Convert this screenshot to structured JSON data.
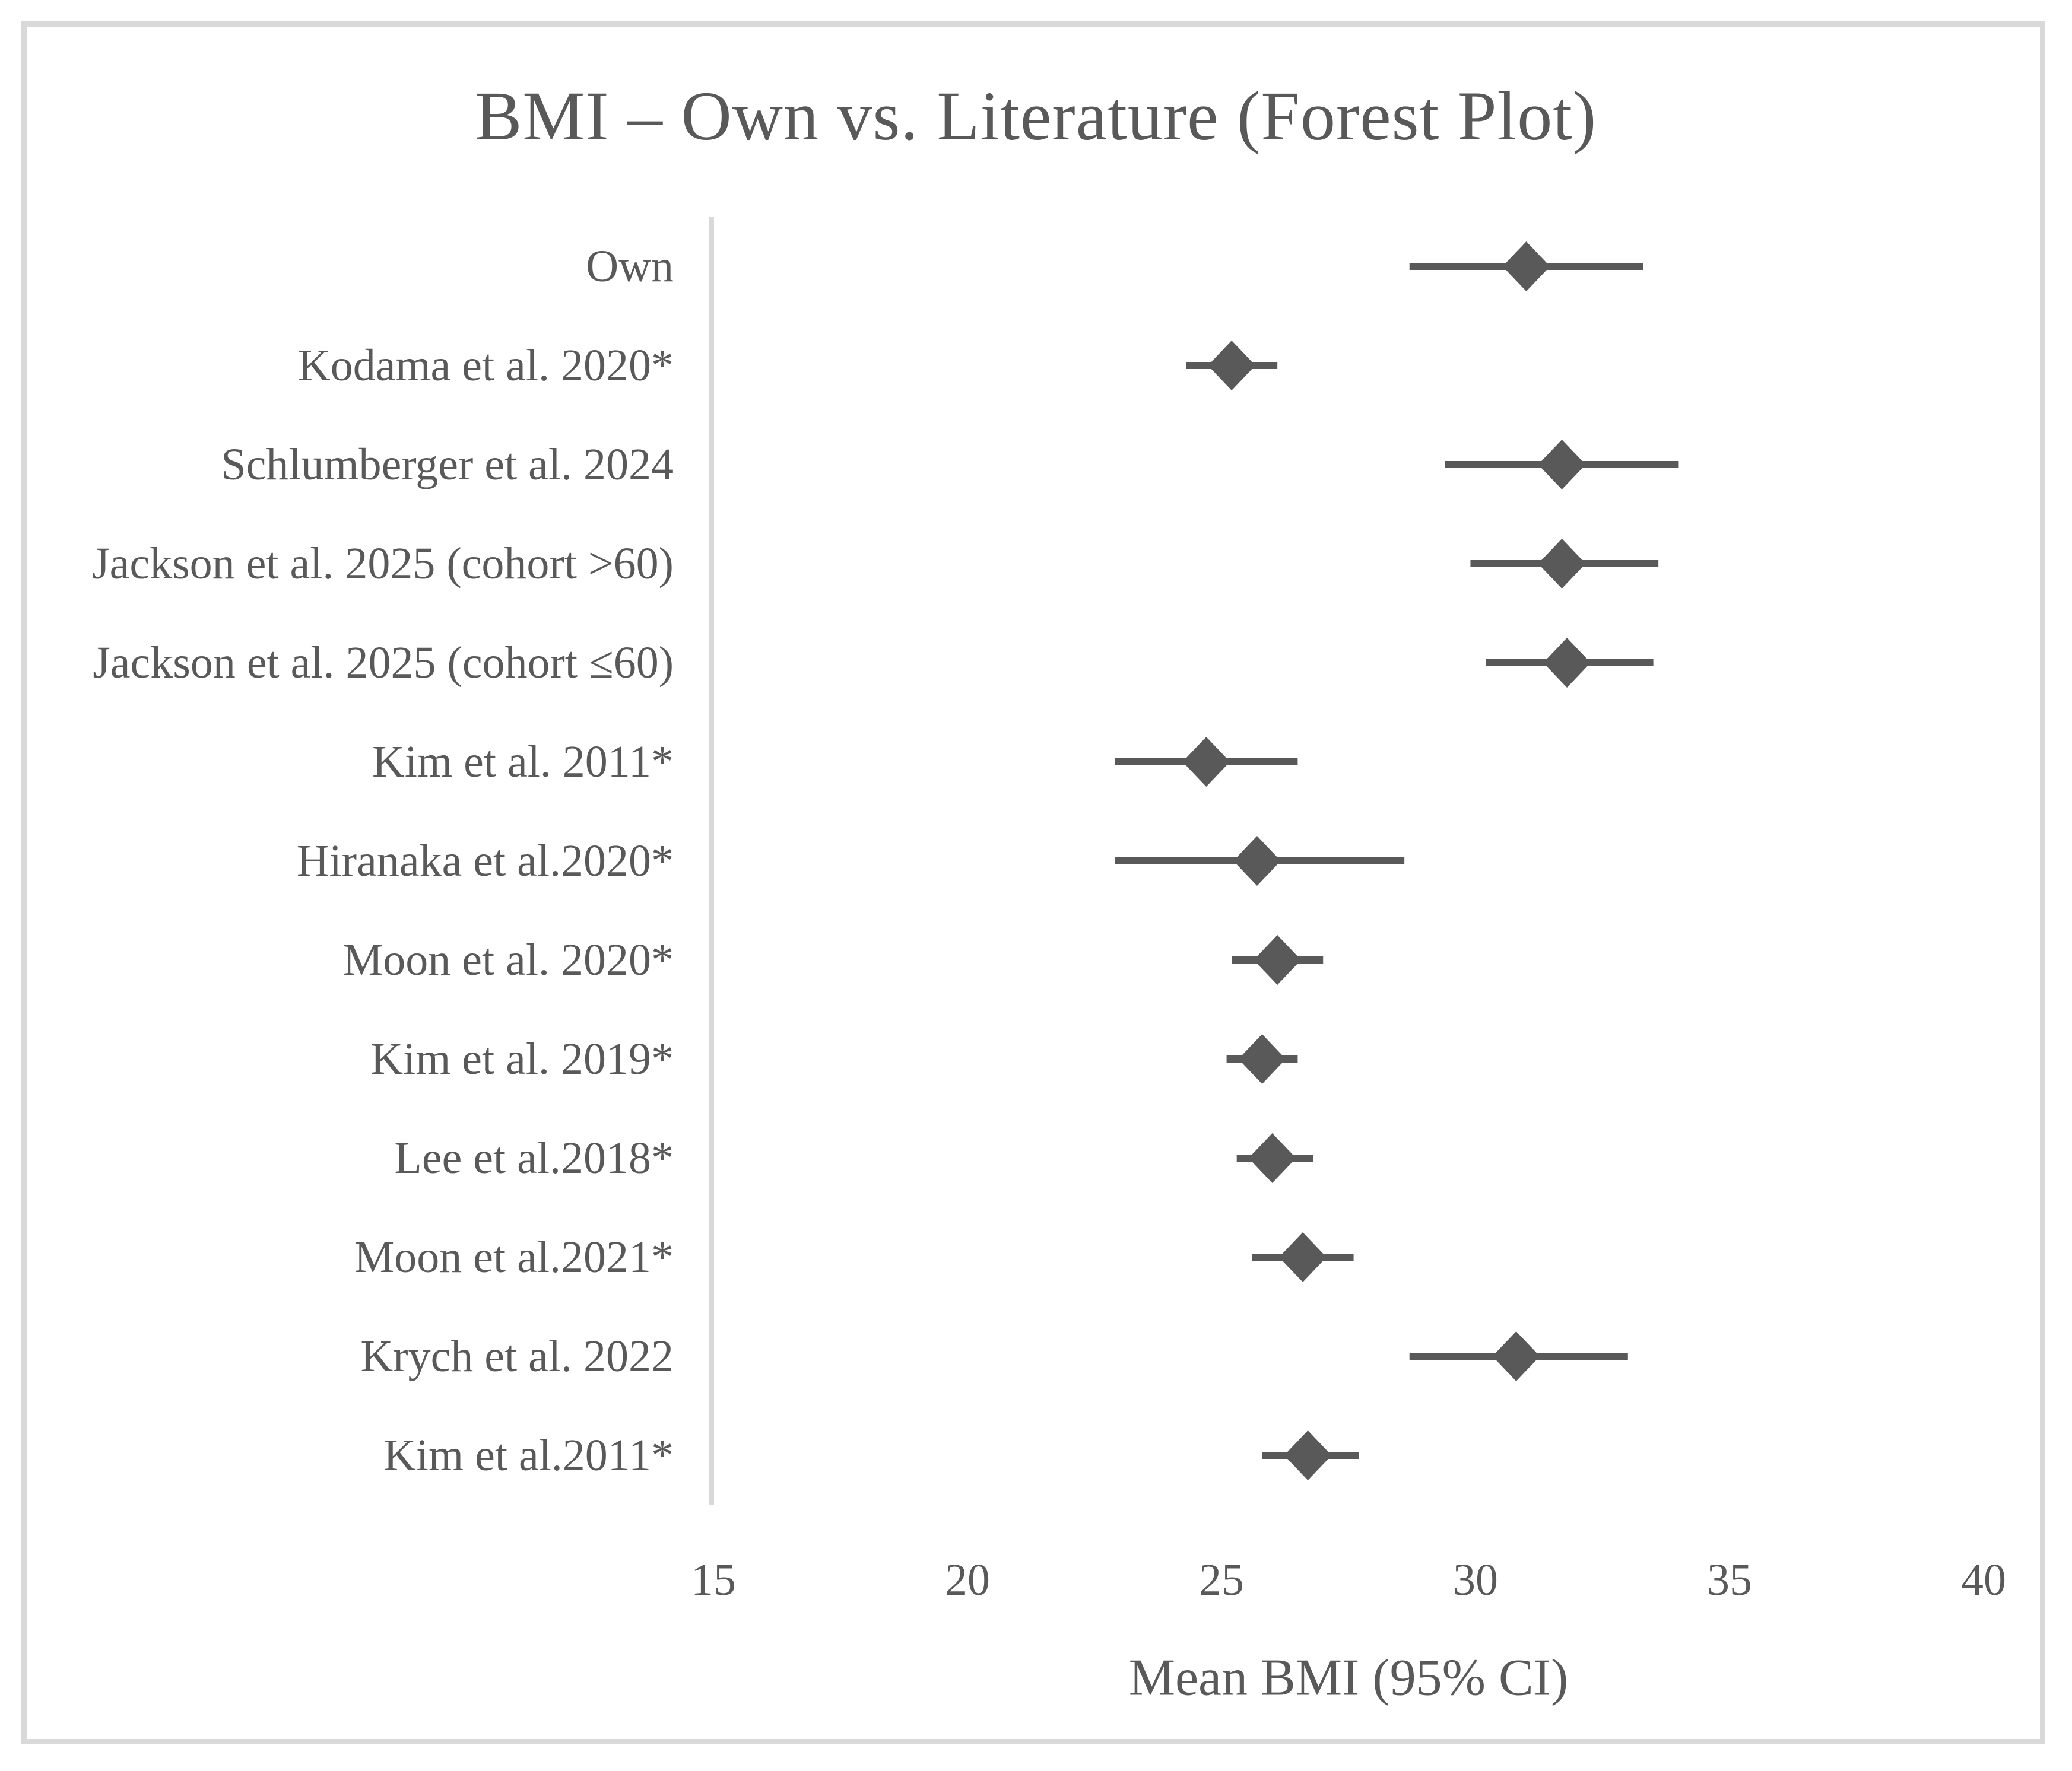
{
  "chart_data": {
    "type": "forest",
    "title": "BMI – Own vs. Literature (Forest Plot)",
    "xlabel": "Mean BMI (95% CI)",
    "xlim": [
      15,
      40
    ],
    "xticks": [
      15,
      20,
      25,
      30,
      35,
      40
    ],
    "grid": false,
    "legend": "none",
    "marker_shape": "diamond",
    "marker_color": "#595959",
    "ci_line_color": "#595959",
    "axis_line_color": "#d9d9d9",
    "text_color": "#595959",
    "frame_color": "#d9d9d9",
    "background_color": "#ffffff",
    "studies": [
      {
        "label": "Own",
        "mean": 31.0,
        "ci_low": 28.7,
        "ci_high": 33.3
      },
      {
        "label": "Kodama et al. 2020*",
        "mean": 25.2,
        "ci_low": 24.3,
        "ci_high": 26.1
      },
      {
        "label": "Schlumberger et al. 2024",
        "mean": 31.7,
        "ci_low": 29.4,
        "ci_high": 34.0
      },
      {
        "label": "Jackson et al. 2025 (cohort >60)",
        "mean": 31.7,
        "ci_low": 29.9,
        "ci_high": 33.6
      },
      {
        "label": "Jackson et al. 2025 (cohort ≤60)",
        "mean": 31.8,
        "ci_low": 30.2,
        "ci_high": 33.5
      },
      {
        "label": "Kim et al. 2011*",
        "mean": 24.7,
        "ci_low": 22.9,
        "ci_high": 26.5
      },
      {
        "label": "Hiranaka et al.2020*",
        "mean": 25.7,
        "ci_low": 22.9,
        "ci_high": 28.6
      },
      {
        "label": "Moon et al. 2020*",
        "mean": 26.1,
        "ci_low": 25.2,
        "ci_high": 27.0
      },
      {
        "label": "Kim et al. 2019*",
        "mean": 25.8,
        "ci_low": 25.1,
        "ci_high": 26.5
      },
      {
        "label": "Lee et al.2018*",
        "mean": 26.0,
        "ci_low": 25.3,
        "ci_high": 26.8
      },
      {
        "label": "Moon et al.2021*",
        "mean": 26.6,
        "ci_low": 25.6,
        "ci_high": 27.6
      },
      {
        "label": "Krych et al. 2022",
        "mean": 30.8,
        "ci_low": 28.7,
        "ci_high": 33.0
      },
      {
        "label": "Kim et al.2011*",
        "mean": 26.7,
        "ci_low": 25.8,
        "ci_high": 27.7
      }
    ]
  }
}
